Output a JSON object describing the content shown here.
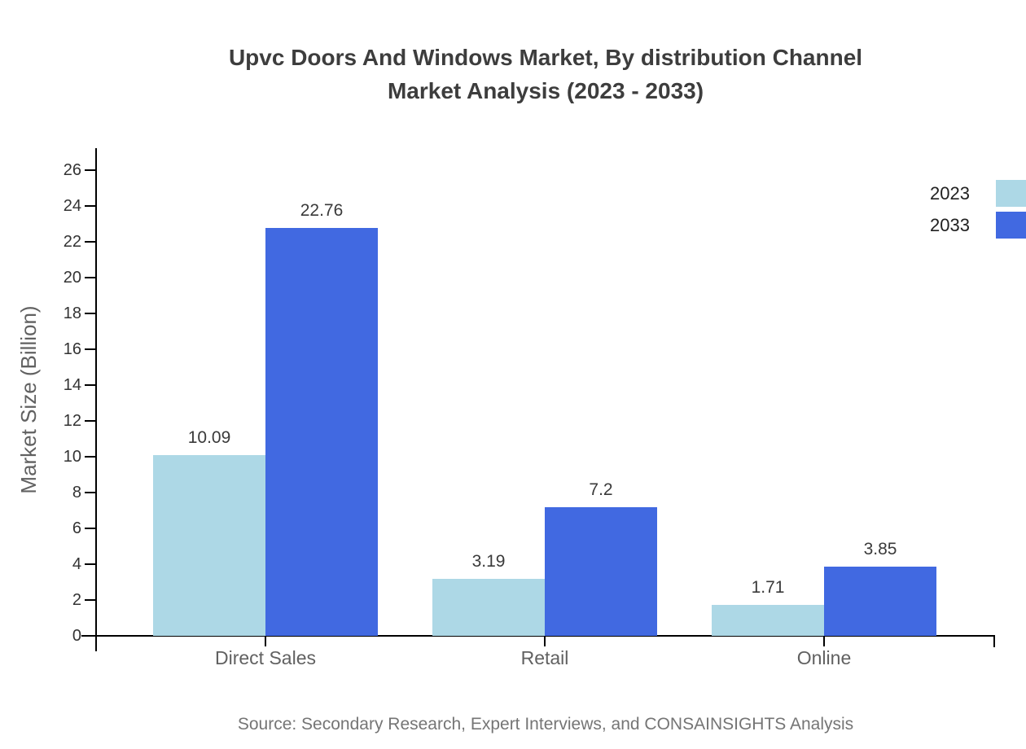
{
  "title": {
    "line1": "Upvc Doors And Windows Market, By distribution Channel",
    "line2": "Market Analysis (2023 - 2033)"
  },
  "source": "Source: Secondary Research, Expert Interviews, and CONSAINSIGHTS Analysis",
  "chart_data": {
    "type": "bar",
    "title": "Upvc Doors And Windows Market, By distribution Channel Market Analysis (2023 - 2033)",
    "categories": [
      "Direct Sales",
      "Retail",
      "Online"
    ],
    "series": [
      {
        "name": "2023",
        "color": "#ADD8E6",
        "values": [
          10.09,
          3.19,
          1.71
        ]
      },
      {
        "name": "2033",
        "color": "#4169E1",
        "values": [
          22.76,
          7.2,
          3.85
        ]
      }
    ],
    "xlabel": "",
    "ylabel": "Market Size (Billion)",
    "ylim": [
      0,
      26
    ],
    "ytick_step": 2,
    "grid": false,
    "legend_position": "top-right",
    "axis_color": "#000000",
    "value_labels_shown": true
  }
}
